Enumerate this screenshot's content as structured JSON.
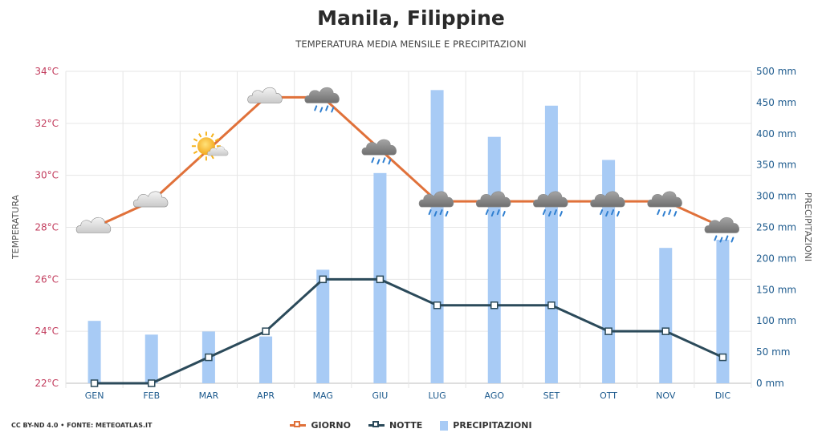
{
  "header": {
    "title": "Manila, Filippine",
    "subtitle": "TEMPERATURA MEDIA MENSILE E PRECIPITAZIONI"
  },
  "footer": {
    "credit": "CC BY-ND 4.0 • FONTE: METEOATLAS.IT"
  },
  "legend": {
    "day_label": "GIORNO",
    "night_label": "NOTTE",
    "precip_label": "PRECIPITAZIONI"
  },
  "colors": {
    "day": "#e0713a",
    "night": "#2b4a5a",
    "precip": "#a8cbf5",
    "left_axis": "#c23b5c",
    "right_axis": "#1e5b8e",
    "grid": "#e6e6e6"
  },
  "chart_data": {
    "type": "line",
    "categories": [
      "GEN",
      "FEB",
      "MAR",
      "APR",
      "MAG",
      "GIU",
      "LUG",
      "AGO",
      "SET",
      "OTT",
      "NOV",
      "DIC"
    ],
    "series": [
      {
        "name": "GIORNO",
        "axis": "left",
        "values": [
          28,
          29,
          31,
          33,
          33,
          31,
          29,
          29,
          29,
          29,
          29,
          28
        ]
      },
      {
        "name": "NOTTE",
        "axis": "left",
        "values": [
          22,
          22,
          23,
          24,
          26,
          26,
          25,
          25,
          25,
          24,
          24,
          23
        ]
      },
      {
        "name": "PRECIPITAZIONI",
        "axis": "right",
        "type": "bar",
        "values": [
          100,
          78,
          83,
          75,
          182,
          337,
          470,
          395,
          445,
          358,
          217,
          230
        ]
      }
    ],
    "weather_icons": [
      "cloudy",
      "cloudy",
      "sun-cloud",
      "cloudy",
      "rain",
      "rain",
      "rain",
      "rain",
      "rain",
      "rain",
      "rain",
      "rain"
    ],
    "ylabel": "TEMPERATURA",
    "y2label": "PRECIPITAZIONI",
    "ylim": [
      22,
      34
    ],
    "y2lim": [
      0,
      500
    ],
    "yticks": [
      "22°C",
      "24°C",
      "26°C",
      "28°C",
      "30°C",
      "32°C",
      "34°C"
    ],
    "y2ticks": [
      "0 mm",
      "50 mm",
      "100 mm",
      "150 mm",
      "200 mm",
      "250 mm",
      "300 mm",
      "350 mm",
      "400 mm",
      "450 mm",
      "500 mm"
    ],
    "grid": true
  }
}
